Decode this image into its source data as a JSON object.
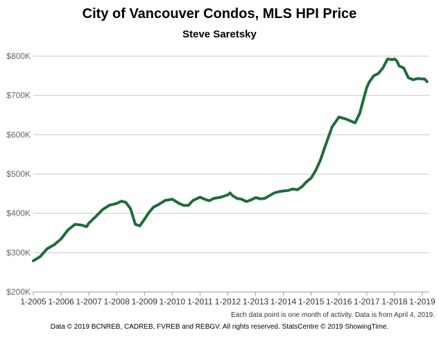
{
  "chart_data": {
    "type": "line",
    "title": "City of Vancouver Condos, MLS HPI Price",
    "subtitle": "Steve Saretsky",
    "xlabel": "",
    "ylabel": "",
    "ylim": [
      200000,
      800000
    ],
    "yticks": [
      {
        "value": 800000,
        "label": "$800K"
      },
      {
        "value": 700000,
        "label": "$700K"
      },
      {
        "value": 600000,
        "label": "$600K"
      },
      {
        "value": 500000,
        "label": "$500K"
      },
      {
        "value": 400000,
        "label": "$400K"
      },
      {
        "value": 300000,
        "label": "$300K"
      },
      {
        "value": 200000,
        "label": "$200K"
      }
    ],
    "xlim": [
      2005,
      2019.25
    ],
    "xticks": [
      {
        "value": 2005,
        "label": "1-2005"
      },
      {
        "value": 2006,
        "label": "1-2006"
      },
      {
        "value": 2007,
        "label": "1-2007"
      },
      {
        "value": 2008,
        "label": "1-2008"
      },
      {
        "value": 2009,
        "label": "1-2009"
      },
      {
        "value": 2010,
        "label": "1-2010"
      },
      {
        "value": 2011,
        "label": "1-2011"
      },
      {
        "value": 2012,
        "label": "1-2012"
      },
      {
        "value": 2013,
        "label": "1-2013"
      },
      {
        "value": 2014,
        "label": "1-2014"
      },
      {
        "value": 2015,
        "label": "1-2015"
      },
      {
        "value": 2016,
        "label": "1-2016"
      },
      {
        "value": 2017,
        "label": "1-2017"
      },
      {
        "value": 2018,
        "label": "1-2018"
      },
      {
        "value": 2019,
        "label": "1-2019"
      }
    ],
    "series": [
      {
        "name": "MLS HPI Price",
        "color": "#1f6b3a",
        "x": [
          2005.0,
          2005.25,
          2005.5,
          2005.75,
          2006.0,
          2006.25,
          2006.5,
          2006.75,
          2006.92,
          2007.0,
          2007.25,
          2007.5,
          2007.75,
          2008.0,
          2008.17,
          2008.33,
          2008.5,
          2008.67,
          2008.83,
          2009.0,
          2009.17,
          2009.33,
          2009.5,
          2009.75,
          2010.0,
          2010.25,
          2010.42,
          2010.58,
          2010.75,
          2011.0,
          2011.17,
          2011.33,
          2011.5,
          2011.75,
          2012.0,
          2012.08,
          2012.17,
          2012.33,
          2012.5,
          2012.67,
          2012.83,
          2013.0,
          2013.17,
          2013.33,
          2013.5,
          2013.67,
          2013.83,
          2014.0,
          2014.17,
          2014.33,
          2014.5,
          2014.67,
          2014.83,
          2015.0,
          2015.17,
          2015.33,
          2015.5,
          2015.75,
          2016.0,
          2016.25,
          2016.42,
          2016.58,
          2016.75,
          2016.92,
          2017.0,
          2017.08,
          2017.25,
          2017.42,
          2017.58,
          2017.75,
          2017.92,
          2018.0,
          2018.08,
          2018.17,
          2018.33,
          2018.5,
          2018.67,
          2018.83,
          2019.0,
          2019.08,
          2019.17
        ],
        "values": [
          279000,
          290000,
          310000,
          320000,
          335000,
          358000,
          372000,
          370000,
          366000,
          375000,
          392000,
          410000,
          421000,
          425000,
          431000,
          428000,
          412000,
          372000,
          368000,
          385000,
          403000,
          416000,
          422000,
          433000,
          436000,
          425000,
          420000,
          420000,
          433000,
          441000,
          436000,
          432000,
          438000,
          441000,
          447000,
          452000,
          445000,
          438000,
          436000,
          430000,
          434000,
          440000,
          437000,
          438000,
          445000,
          452000,
          455000,
          457000,
          458000,
          462000,
          460000,
          468000,
          480000,
          490000,
          510000,
          535000,
          570000,
          620000,
          645000,
          640000,
          635000,
          630000,
          655000,
          700000,
          720000,
          733000,
          750000,
          756000,
          770000,
          793000,
          791000,
          793000,
          788000,
          775000,
          770000,
          745000,
          740000,
          743000,
          742000,
          742000,
          735000
        ]
      }
    ]
  },
  "notes": {
    "data_note": "Each data point is one month of activity. Data is from April 4, 2019.",
    "copyright": "Data © 2019 BCNREB, CADREB, FVREB and REBGV. All rights reserved. StatsCentre © 2019 ShowingTime."
  }
}
